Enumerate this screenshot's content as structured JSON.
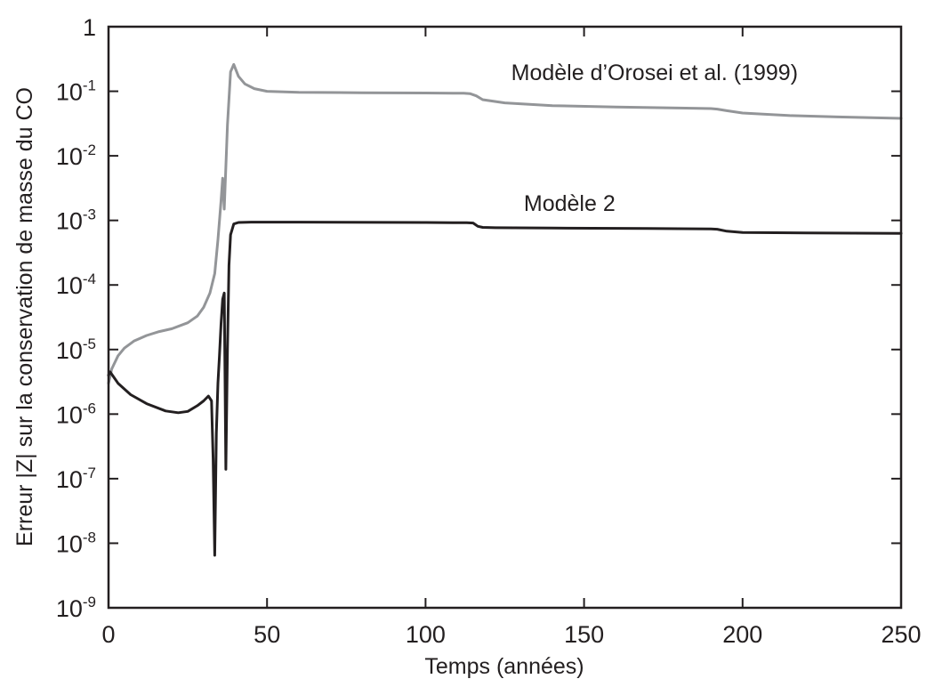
{
  "chart_data": {
    "type": "line",
    "xlabel": "Temps (années)",
    "ylabel": "Erreur |Z| sur la conservation de masse du CO",
    "xlim": [
      0,
      250
    ],
    "ylim": [
      1e-09,
      1
    ],
    "yscale": "log",
    "grid": false,
    "x_ticks": [
      0,
      50,
      100,
      150,
      200,
      250
    ],
    "y_ticks": [
      {
        "base": "10",
        "exp": "-9",
        "value": 1e-09
      },
      {
        "base": "10",
        "exp": "-8",
        "value": 1e-08
      },
      {
        "base": "10",
        "exp": "-7",
        "value": 1e-07
      },
      {
        "base": "10",
        "exp": "-6",
        "value": 1e-06
      },
      {
        "base": "10",
        "exp": "-5",
        "value": 1e-05
      },
      {
        "base": "10",
        "exp": "-4",
        "value": 0.0001
      },
      {
        "base": "10",
        "exp": "-3",
        "value": 0.001
      },
      {
        "base": "10",
        "exp": "-2",
        "value": 0.01
      },
      {
        "base": "10",
        "exp": "-1",
        "value": 0.1
      },
      {
        "base": "1",
        "exp": "",
        "value": 1
      }
    ],
    "series": [
      {
        "name": "Modèle d’Orosei et al. (1999)",
        "color": "#939598",
        "x": [
          0,
          1,
          3,
          5,
          8,
          12,
          16,
          20,
          25,
          28,
          30,
          32,
          33.5,
          34.5,
          35.5,
          36,
          36.5,
          37.5,
          38.5,
          39.5,
          41,
          43,
          46,
          50,
          60,
          80,
          100,
          112,
          114,
          116,
          118,
          125,
          140,
          160,
          180,
          190,
          192,
          195,
          200,
          215,
          230,
          250
        ],
        "y": [
          3e-06,
          5e-06,
          8e-06,
          1.05e-05,
          1.35e-05,
          1.65e-05,
          1.9e-05,
          2.1e-05,
          2.6e-05,
          3.3e-05,
          4.5e-05,
          7.5e-05,
          0.00015,
          0.0005,
          0.002,
          0.0045,
          0.0015,
          0.03,
          0.2,
          0.26,
          0.17,
          0.13,
          0.11,
          0.1,
          0.096,
          0.095,
          0.094,
          0.093,
          0.092,
          0.085,
          0.074,
          0.066,
          0.06,
          0.057,
          0.055,
          0.054,
          0.053,
          0.05,
          0.046,
          0.042,
          0.04,
          0.038
        ]
      },
      {
        "name": "Modèle 2",
        "color": "#231f20",
        "x": [
          0,
          0.5,
          3,
          7,
          12,
          18,
          22,
          25,
          28,
          30,
          31.5,
          32.5,
          33,
          33.5,
          34,
          34.5,
          35,
          35.5,
          36,
          36.5,
          37,
          37.5,
          38,
          38.5,
          39.5,
          41,
          45,
          60,
          100,
          113,
          115,
          116.5,
          118,
          122,
          140,
          170,
          190,
          192,
          195,
          200,
          220,
          250
        ],
        "y": [
          4e-06,
          4.5e-06,
          3e-06,
          2e-06,
          1.45e-06,
          1.12e-06,
          1.05e-06,
          1.1e-06,
          1.35e-06,
          1.6e-06,
          1.9e-06,
          1.6e-06,
          2e-07,
          6.5e-09,
          5e-07,
          3e-06,
          8e-06,
          2.5e-05,
          6e-05,
          7.5e-05,
          1.4e-07,
          1e-05,
          0.0002,
          0.0006,
          0.00088,
          0.00093,
          0.00094,
          0.00094,
          0.00093,
          0.00092,
          0.00091,
          0.00081,
          0.00078,
          0.00077,
          0.00076,
          0.00075,
          0.00074,
          0.00073,
          0.00068,
          0.00065,
          0.00064,
          0.00063
        ]
      }
    ],
    "annotations": [
      {
        "text": "Modèle d’Orosei et al. (1999)",
        "x": 127,
        "y": 0.15
      },
      {
        "text": "Modèle 2",
        "x": 131,
        "y": 0.0014
      }
    ]
  }
}
